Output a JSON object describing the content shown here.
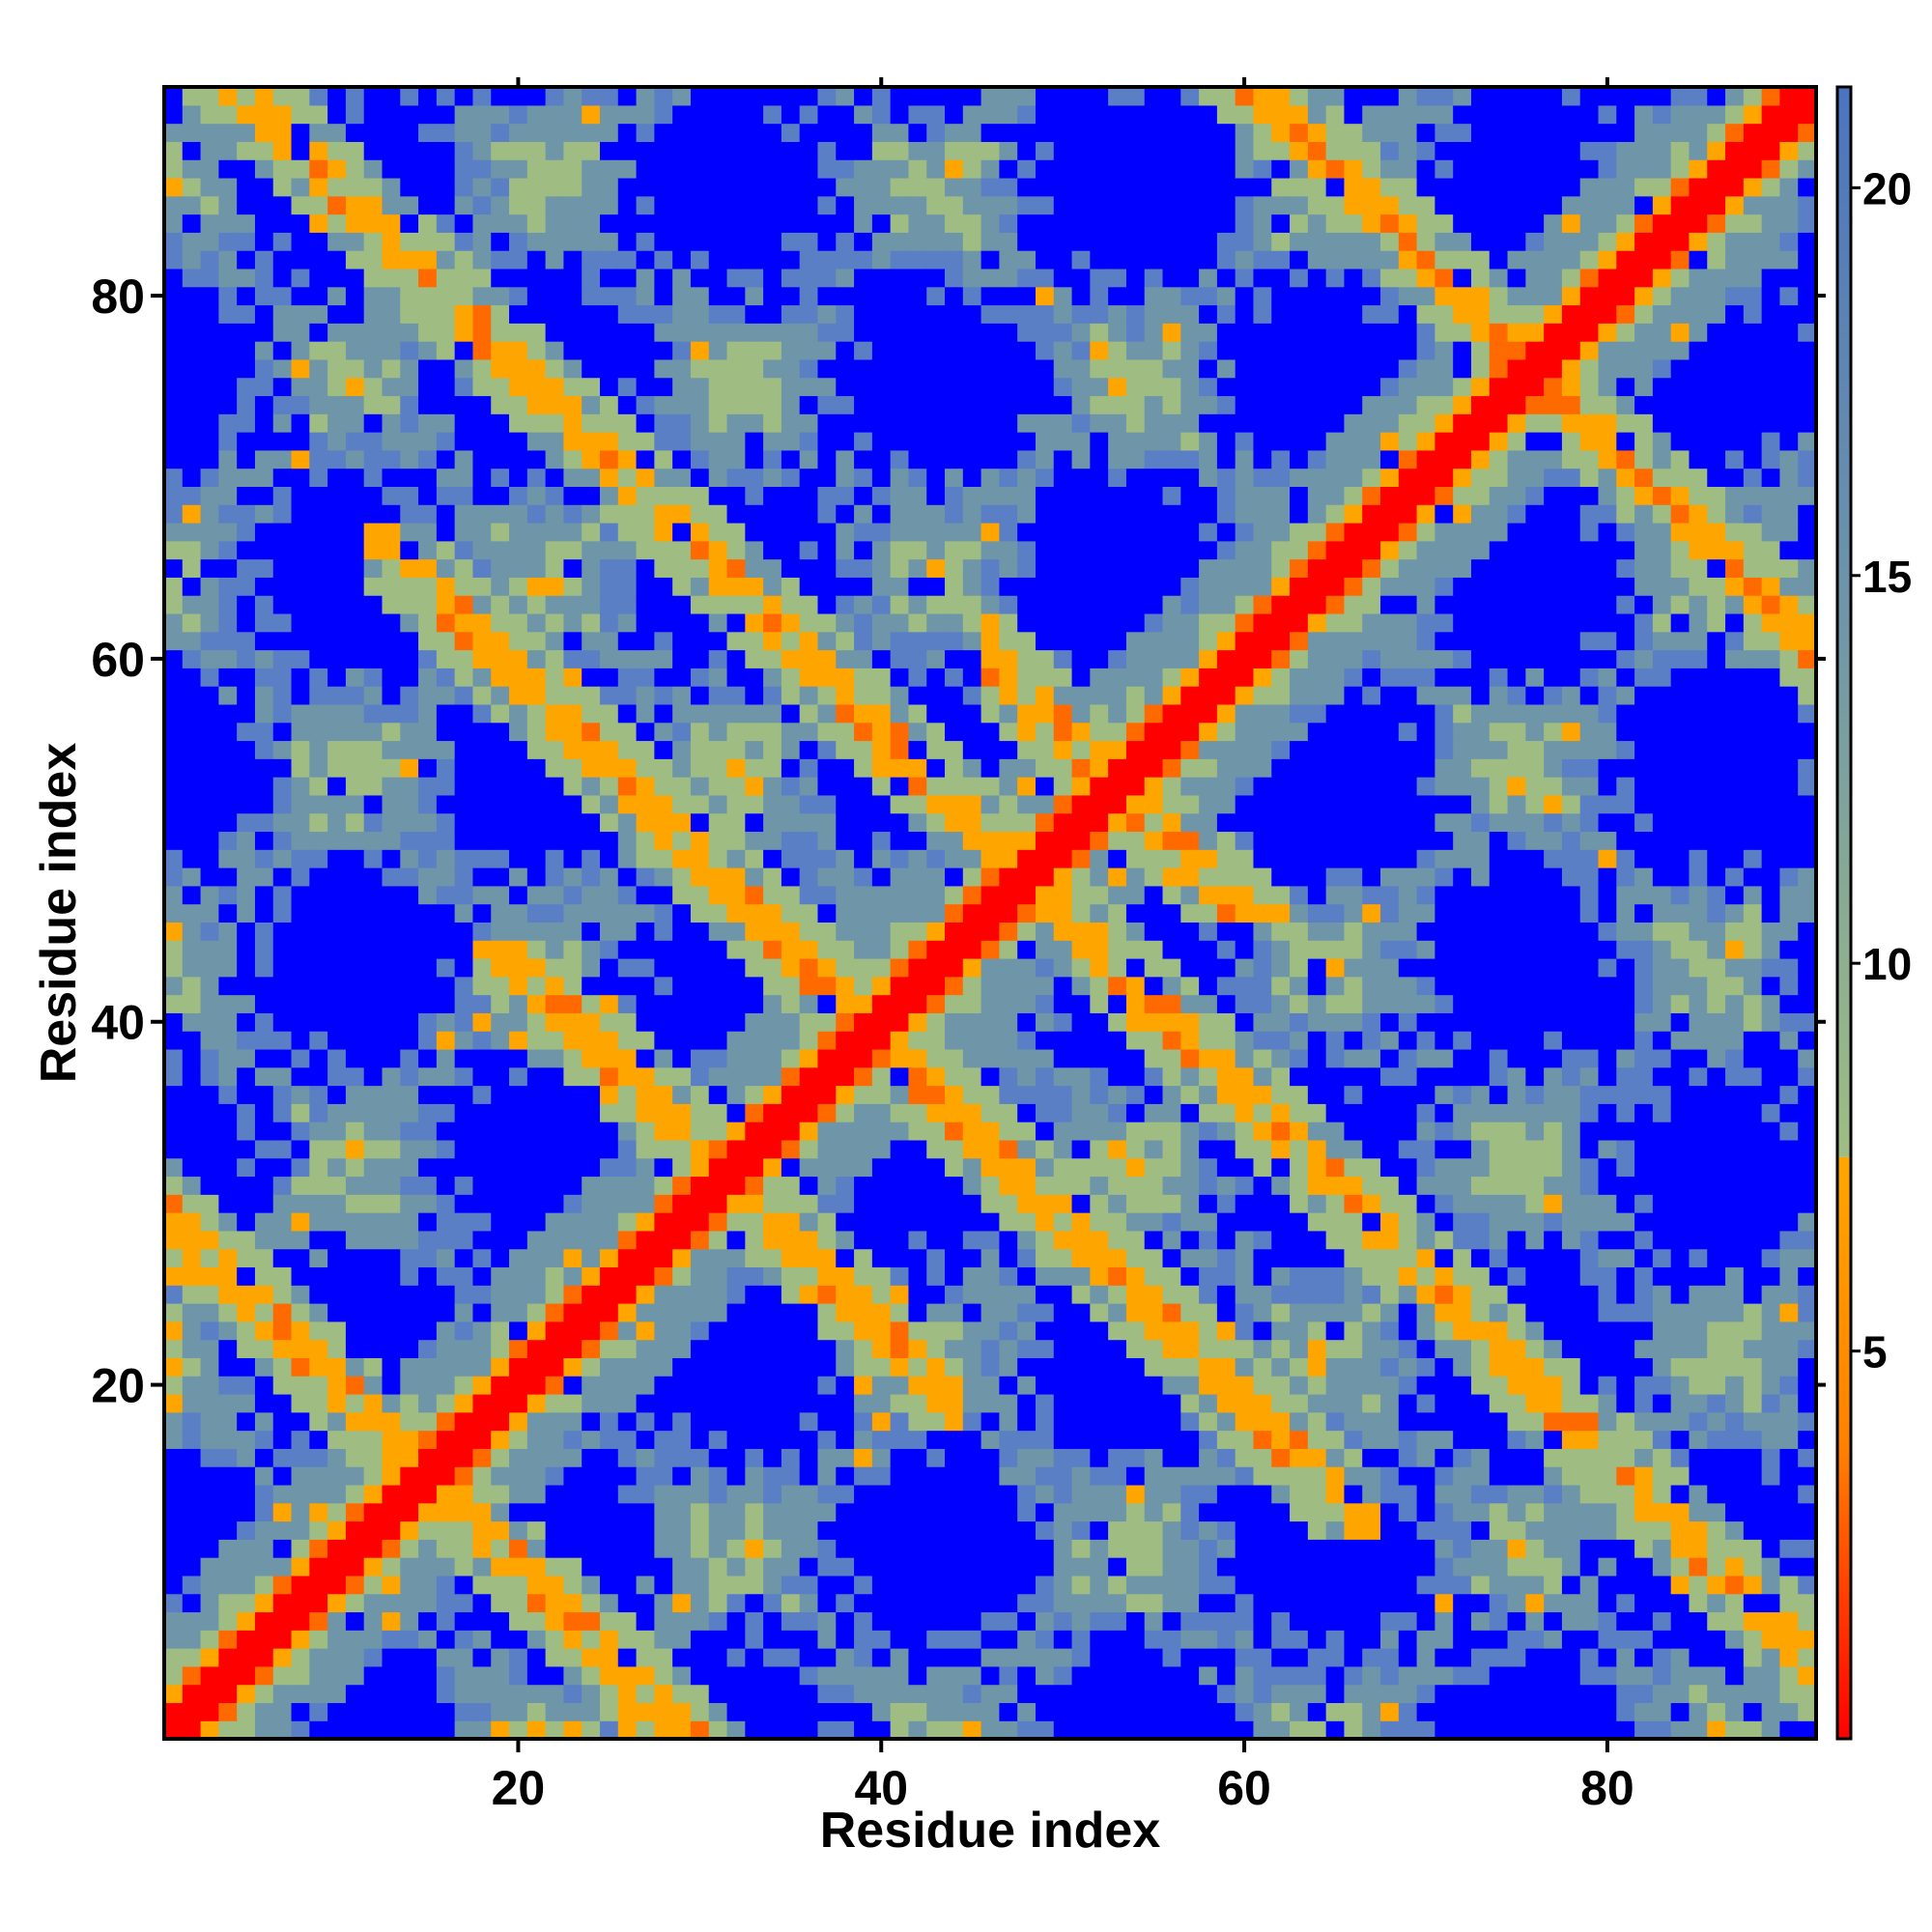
{
  "chart_data": {
    "type": "heatmap",
    "title": "",
    "xlabel": "Residue index",
    "ylabel": "Residue index",
    "n_residues": 91,
    "xlim": [
      1,
      91
    ],
    "ylim": [
      1,
      91
    ],
    "xticks": [
      20,
      40,
      60,
      80
    ],
    "yticks": [
      20,
      40,
      60,
      80
    ],
    "colorbar": {
      "ticks": [
        5,
        10,
        15,
        20
      ],
      "range": [
        0,
        21.3
      ],
      "bands": [
        {
          "from": 0,
          "to": 7.5,
          "colors": [
            "#ff0000",
            "#ff8000",
            "#ffa500"
          ]
        },
        {
          "from": 7.5,
          "to": 21.3,
          "colors": [
            "#9fbd83",
            "#6f96a8",
            "#4a74c0"
          ]
        }
      ],
      "top_color": "#0000ff"
    },
    "colors": {
      "contact": "#ff0000",
      "close": "#ff6a00",
      "near": "#ffa500",
      "mid": "#9fbd83",
      "far": "#6f96a8",
      "background": "#0000ff"
    },
    "secondary_structure_bands": [
      {
        "type": "diagonal",
        "center": 0,
        "width": 1.2
      },
      {
        "type": "anti",
        "sum": 30,
        "from": 1,
        "to": 30
      },
      {
        "type": "anti",
        "sum": 96,
        "from": 4,
        "to": 90
      },
      {
        "type": "anti",
        "sum": 106,
        "from": 48,
        "to": 60
      },
      {
        "type": "anti",
        "sum": 152,
        "from": 60,
        "to": 91
      },
      {
        "type": "anti",
        "sum": 79,
        "from": 14,
        "to": 65
      },
      {
        "type": "anti",
        "sum": 63,
        "from": 20,
        "to": 42
      }
    ],
    "texture": "pseudo-random speckle of blue cells and orange cells scattered in green regions; large blue voids arranged in a lattice pattern"
  }
}
